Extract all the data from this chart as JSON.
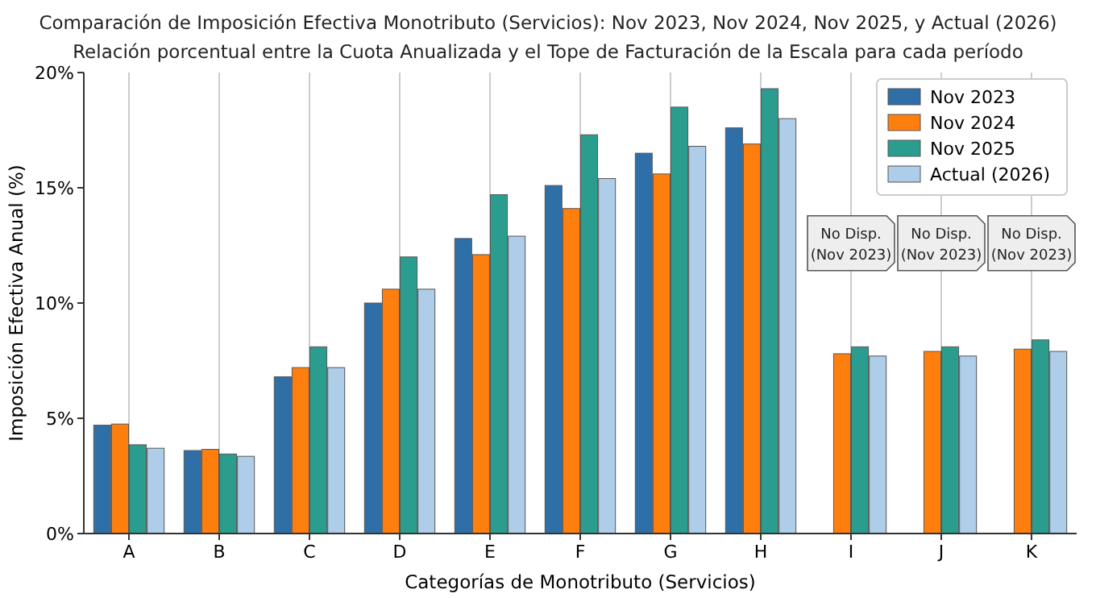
{
  "chart_data": {
    "type": "bar",
    "title": "Comparación de Imposición Efectiva Monotributo (Servicios): Nov 2023, Nov 2024, Nov 2025, y Actual (2026)",
    "subtitle": "Relación porcentual entre la Cuota Anualizada y el Tope de Facturación de la Escala para cada período",
    "xlabel": "Categorías de Monotributo (Servicios)",
    "ylabel": "Imposición Efectiva Anual (%)",
    "categories": [
      "A",
      "B",
      "C",
      "D",
      "E",
      "F",
      "G",
      "H",
      "I",
      "J",
      "K"
    ],
    "series": [
      {
        "name": "Nov 2023",
        "color": "#2e6fa8",
        "values": [
          4.7,
          3.6,
          6.8,
          10.0,
          12.8,
          15.1,
          16.5,
          17.6,
          null,
          null,
          null
        ]
      },
      {
        "name": "Nov 2024",
        "color": "#ff7f0e",
        "values": [
          4.75,
          3.65,
          7.2,
          10.6,
          12.1,
          14.1,
          15.6,
          16.9,
          7.8,
          7.9,
          8.0
        ]
      },
      {
        "name": "Nov 2025",
        "color": "#2a9d8f",
        "values": [
          3.85,
          3.45,
          8.1,
          12.0,
          14.7,
          17.3,
          18.5,
          19.3,
          8.1,
          8.1,
          8.4
        ]
      },
      {
        "name": "Actual (2026)",
        "color": "#aecde8",
        "values": [
          3.7,
          3.35,
          7.2,
          10.6,
          12.9,
          15.4,
          16.8,
          18.0,
          7.7,
          7.7,
          7.9
        ]
      }
    ],
    "ylim": [
      0,
      20
    ],
    "yticks": [
      {
        "value": 0,
        "label": "0%"
      },
      {
        "value": 5,
        "label": "5%"
      },
      {
        "value": 10,
        "label": "10%"
      },
      {
        "value": 15,
        "label": "15%"
      },
      {
        "value": 20,
        "label": "20%"
      }
    ],
    "grid": "x",
    "legend": "top right",
    "annotations": [
      "No Disp.\n(Nov 2023)",
      "No Disp.\n(Nov 2023)",
      "No Disp.\n(Nov 2023)"
    ]
  }
}
